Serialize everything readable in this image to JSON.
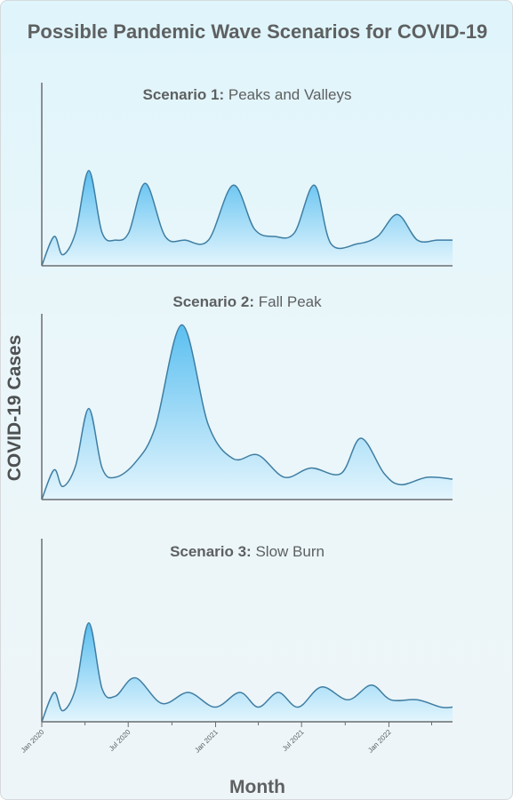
{
  "title": "Possible Pandemic Wave Scenarios for COVID-19",
  "ylabel": "COVID-19 Cases",
  "xlabel": "Month",
  "colors": {
    "fill_top": "#5bbff0",
    "fill_bottom": "#e3f5fd",
    "line": "#3f7ea3",
    "axis": "#6a6d70"
  },
  "chart_data": [
    {
      "type": "area",
      "title_bold": "Scenario 1:",
      "title_rest": "Peaks and Valleys",
      "xlim": [
        "2020-01-01",
        "2022-05-15"
      ],
      "ylim": [
        0,
        100
      ],
      "x": [
        "2020-01-01",
        "2020-01-27",
        "2020-02-14",
        "2020-03-12",
        "2020-04-09",
        "2020-05-07",
        "2020-06-04",
        "2020-07-02",
        "2020-08-06",
        "2020-09-17",
        "2020-10-29",
        "2020-12-17",
        "2021-02-07",
        "2021-03-24",
        "2021-05-05",
        "2021-06-16",
        "2021-07-28",
        "2021-09-01",
        "2021-10-27",
        "2021-12-08",
        "2022-01-19",
        "2022-03-02",
        "2022-04-13",
        "2022-05-15"
      ],
      "values": [
        0,
        16,
        6,
        18,
        52,
        18,
        14,
        18,
        45,
        16,
        14,
        14,
        44,
        20,
        16,
        18,
        44,
        12,
        12,
        16,
        28,
        14,
        14,
        14
      ]
    },
    {
      "type": "area",
      "title_bold": "Scenario 2:",
      "title_rest": "Fall Peak",
      "xlim": [
        "2020-01-01",
        "2022-05-15"
      ],
      "ylim": [
        0,
        100
      ],
      "x": [
        "2020-01-01",
        "2020-01-27",
        "2020-02-14",
        "2020-03-12",
        "2020-04-09",
        "2020-05-07",
        "2020-06-04",
        "2020-07-16",
        "2020-08-27",
        "2020-10-22",
        "2020-12-17",
        "2021-02-07",
        "2021-03-31",
        "2021-05-26",
        "2021-07-21",
        "2021-09-22",
        "2021-11-03",
        "2021-12-22",
        "2022-01-26",
        "2022-03-23",
        "2022-05-15"
      ],
      "values": [
        0,
        16,
        7,
        18,
        49,
        17,
        12,
        20,
        39,
        94,
        40,
        22,
        24,
        12,
        17,
        14,
        33,
        14,
        8,
        12,
        11
      ]
    },
    {
      "type": "area",
      "title_bold": "Scenario 3:",
      "title_rest": "Slow Burn",
      "xlim": [
        "2020-01-01",
        "2022-05-15"
      ],
      "ylim": [
        0,
        100
      ],
      "x": [
        "2020-01-01",
        "2020-01-27",
        "2020-02-14",
        "2020-03-12",
        "2020-04-09",
        "2020-05-07",
        "2020-06-04",
        "2020-07-16",
        "2020-09-10",
        "2020-11-05",
        "2020-12-31",
        "2021-02-21",
        "2021-04-01",
        "2021-05-13",
        "2021-06-24",
        "2021-08-12",
        "2021-10-07",
        "2021-11-25",
        "2022-01-05",
        "2022-03-02",
        "2022-04-20",
        "2022-05-15"
      ],
      "values": [
        0,
        16,
        6,
        18,
        54,
        18,
        14,
        24,
        10,
        16,
        8,
        16,
        8,
        16,
        8,
        19,
        12,
        20,
        12,
        12,
        8,
        8
      ]
    }
  ],
  "x_ticks": [
    {
      "label": "Jan 2020",
      "date": "2020-01-01"
    },
    {
      "label": "Jul 2020",
      "date": "2020-07-01"
    },
    {
      "label": "Jan 2021",
      "date": "2021-01-01"
    },
    {
      "label": "Jul 2021",
      "date": "2021-07-01"
    },
    {
      "label": "Jan 2022",
      "date": "2022-01-01"
    }
  ],
  "x_ticks_minor": [
    "2020-04-01",
    "2020-10-01",
    "2021-04-01",
    "2021-10-01",
    "2022-04-01"
  ]
}
